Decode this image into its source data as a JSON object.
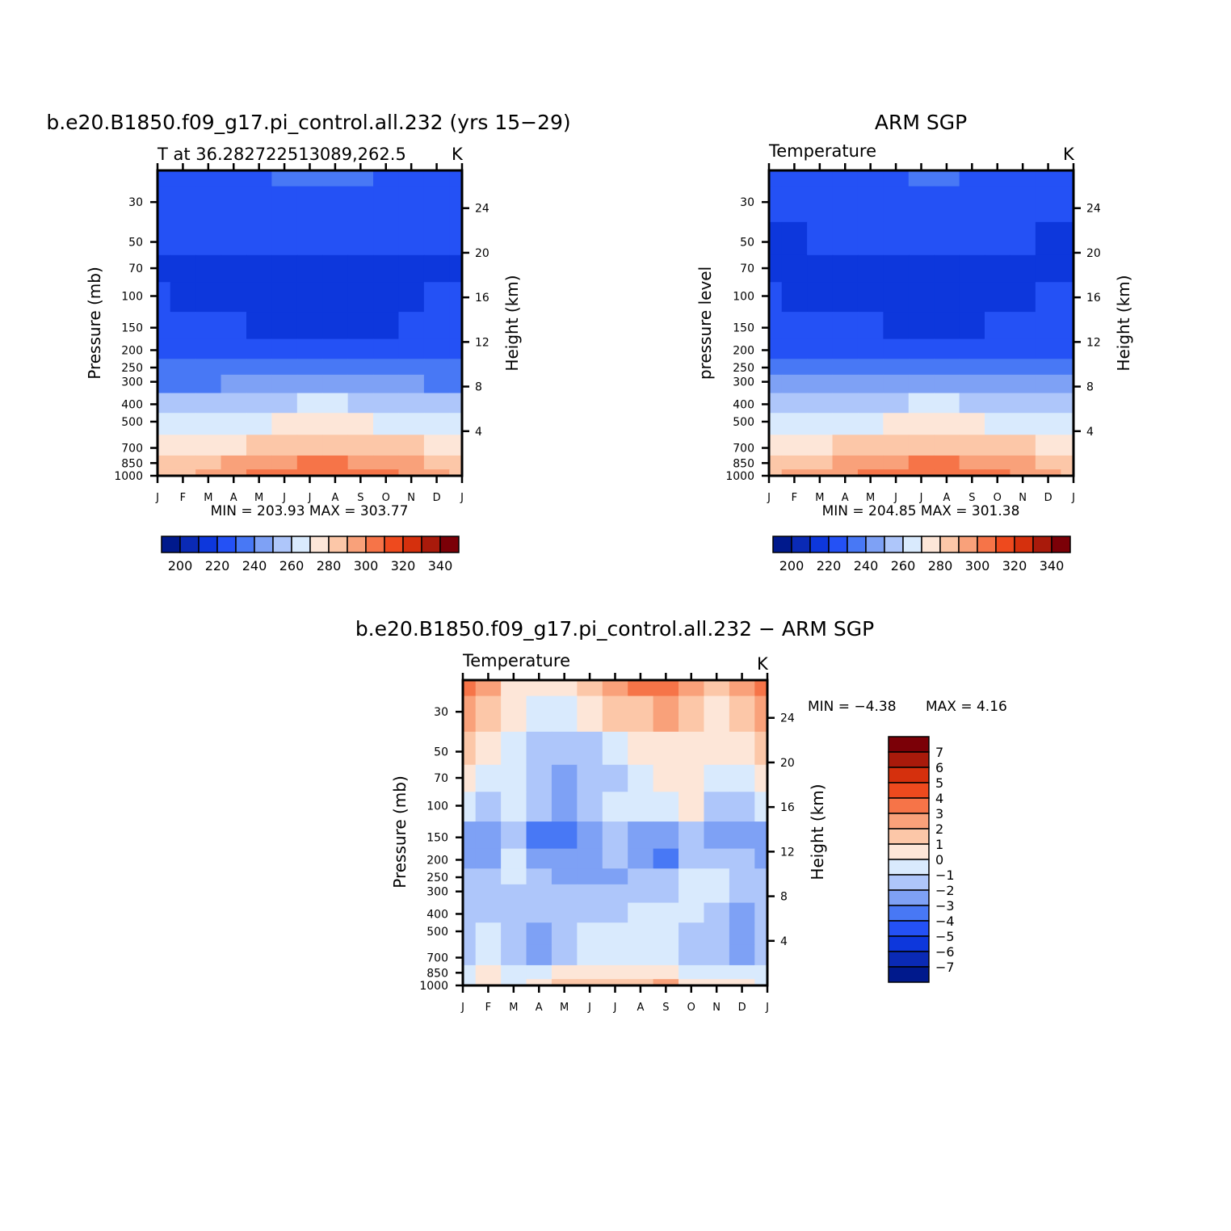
{
  "chart_data": [
    {
      "type": "heatmap",
      "title": "b.e20.B1850.f09_g17.pi_control.all.232 (yrs 15−29)",
      "subtitle": "T at 36.282722513089,262.5",
      "units": "K",
      "ylabel": "Pressure (mb)",
      "ylabel_right": "Height (km)",
      "x_ticks": [
        "J",
        "F",
        "M",
        "A",
        "M",
        "J",
        "J",
        "A",
        "S",
        "O",
        "N",
        "D",
        "J"
      ],
      "y_ticks": [
        "30",
        "50",
        "70",
        "100",
        "150",
        "200",
        "250",
        "300",
        "400",
        "500",
        "700",
        "850",
        "1000"
      ],
      "y_ticks_right": [
        "24",
        "20",
        "16",
        "12",
        "8",
        "4"
      ],
      "ylim": [
        1000,
        20
      ],
      "y_scale": "log",
      "stats": "MIN = 203.93 MAX = 303.77",
      "levels": [
        "200",
        "220",
        "240",
        "260",
        "280",
        "300",
        "320",
        "340"
      ],
      "x": [
        1,
        2,
        3,
        4,
        5,
        6,
        7,
        8,
        9,
        10,
        11,
        12,
        13
      ],
      "y": [
        20,
        30,
        50,
        70,
        100,
        150,
        200,
        250,
        300,
        400,
        500,
        700,
        850,
        1000
      ],
      "z": [
        [
          217,
          217,
          217,
          218,
          219,
          220,
          221,
          221,
          220,
          219,
          217,
          217,
          217
        ],
        [
          214,
          214,
          214,
          215,
          216,
          217,
          218,
          218,
          217,
          216,
          214,
          214,
          214
        ],
        [
          211,
          211,
          211,
          211,
          212,
          212,
          213,
          213,
          212,
          211,
          211,
          211,
          211
        ],
        [
          208,
          208,
          207,
          207,
          207,
          207,
          207,
          207,
          207,
          208,
          208,
          208,
          208
        ],
        [
          210,
          209,
          207,
          207,
          206,
          205,
          205,
          205,
          205,
          206,
          208,
          210,
          210
        ],
        [
          213,
          213,
          212,
          210,
          206,
          205,
          205,
          205,
          206,
          207,
          210,
          213,
          213
        ],
        [
          217,
          217,
          217,
          217,
          216,
          216,
          216,
          216,
          216,
          216,
          217,
          217,
          217
        ],
        [
          224,
          224,
          224,
          225,
          226,
          227,
          228,
          228,
          227,
          226,
          225,
          224,
          224
        ],
        [
          229,
          229,
          229,
          230,
          232,
          234,
          235,
          235,
          234,
          233,
          231,
          229,
          229
        ],
        [
          240,
          240,
          240,
          242,
          245,
          248,
          250,
          250,
          249,
          247,
          244,
          241,
          240
        ],
        [
          252,
          252,
          252,
          254,
          257,
          260,
          262,
          262,
          261,
          259,
          256,
          253,
          252
        ],
        [
          266,
          266,
          267,
          269,
          272,
          275,
          277,
          277,
          276,
          273,
          270,
          267,
          266
        ],
        [
          274,
          274,
          276,
          280,
          284,
          288,
          290,
          290,
          288,
          284,
          280,
          276,
          274
        ],
        [
          278,
          279,
          282,
          287,
          292,
          296,
          299,
          299,
          296,
          292,
          286,
          281,
          278
        ]
      ]
    },
    {
      "type": "heatmap",
      "title": "ARM SGP",
      "subtitle": "Temperature",
      "units": "K",
      "ylabel": "pressure level",
      "ylabel_right": "Height (km)",
      "x_ticks": [
        "J",
        "F",
        "M",
        "A",
        "M",
        "J",
        "J",
        "A",
        "S",
        "O",
        "N",
        "D",
        "J"
      ],
      "y_ticks": [
        "30",
        "50",
        "70",
        "100",
        "150",
        "200",
        "250",
        "300",
        "400",
        "500",
        "700",
        "850",
        "1000"
      ],
      "y_ticks_right": [
        "24",
        "20",
        "16",
        "12",
        "8",
        "4"
      ],
      "ylim": [
        1000,
        20
      ],
      "y_scale": "log",
      "stats": "MIN = 204.85 MAX = 301.38",
      "levels": [
        "200",
        "220",
        "240",
        "260",
        "280",
        "300",
        "320",
        "340"
      ],
      "x": [
        1,
        2,
        3,
        4,
        5,
        6,
        7,
        8,
        9,
        10,
        11,
        12,
        13
      ],
      "y": [
        20,
        30,
        50,
        70,
        100,
        150,
        200,
        250,
        300,
        400,
        500,
        700,
        850,
        1000
      ],
      "z": [
        [
          216,
          216,
          216,
          217,
          218,
          219,
          221,
          220,
          219,
          218,
          217,
          216,
          216
        ],
        [
          213,
          213,
          213,
          214,
          215,
          216,
          217,
          217,
          216,
          215,
          214,
          213,
          213
        ],
        [
          208,
          208,
          210,
          211,
          211,
          211,
          211,
          211,
          211,
          211,
          210,
          208,
          208
        ],
        [
          208,
          208,
          207,
          207,
          207,
          207,
          207,
          207,
          207,
          207,
          207,
          208,
          208
        ],
        [
          210,
          209,
          208,
          207,
          207,
          206,
          206,
          206,
          207,
          207,
          209,
          210,
          210
        ],
        [
          214,
          214,
          213,
          212,
          210,
          208,
          207,
          207,
          208,
          210,
          212,
          214,
          214
        ],
        [
          218,
          218,
          218,
          218,
          217,
          216,
          216,
          216,
          216,
          217,
          218,
          218,
          218
        ],
        [
          225,
          225,
          225,
          226,
          227,
          228,
          229,
          229,
          228,
          227,
          226,
          225,
          225
        ],
        [
          230,
          230,
          230,
          231,
          233,
          234,
          236,
          236,
          235,
          233,
          231,
          230,
          230
        ],
        [
          241,
          241,
          241,
          243,
          246,
          248,
          250,
          250,
          249,
          247,
          244,
          241,
          241
        ],
        [
          253,
          253,
          253,
          255,
          258,
          260,
          262,
          262,
          261,
          259,
          256,
          253,
          253
        ],
        [
          267,
          267,
          268,
          270,
          273,
          275,
          277,
          277,
          276,
          274,
          271,
          268,
          267
        ],
        [
          275,
          275,
          277,
          281,
          285,
          288,
          290,
          290,
          288,
          285,
          280,
          277,
          275
        ],
        [
          279,
          280,
          283,
          288,
          292,
          295,
          297,
          297,
          295,
          291,
          286,
          282,
          279
        ]
      ]
    },
    {
      "type": "heatmap",
      "title": "b.e20.B1850.f09_g17.pi_control.all.232 − ARM SGP",
      "subtitle": "Temperature",
      "units": "K",
      "ylabel": "Pressure (mb)",
      "ylabel_right": "Height (km)",
      "x_ticks": [
        "J",
        "F",
        "M",
        "A",
        "M",
        "J",
        "J",
        "A",
        "S",
        "O",
        "N",
        "D",
        "J"
      ],
      "y_ticks": [
        "30",
        "50",
        "70",
        "100",
        "150",
        "200",
        "250",
        "300",
        "400",
        "500",
        "700",
        "850",
        "1000"
      ],
      "y_ticks_right": [
        "24",
        "20",
        "16",
        "12",
        "8",
        "4"
      ],
      "ylim": [
        1000,
        20
      ],
      "y_scale": "log",
      "stats_min": "MIN = −4.38",
      "stats_max": "MAX = 4.16",
      "levels": [
        "7",
        "6",
        "5",
        "4",
        "3",
        "2",
        "1",
        "0",
        "−1",
        "−2",
        "−3",
        "−4",
        "−5",
        "−6",
        "−7"
      ],
      "x": [
        1,
        2,
        3,
        4,
        5,
        6,
        7,
        8,
        9,
        10,
        11,
        12,
        13
      ],
      "y": [
        20,
        30,
        50,
        70,
        100,
        150,
        200,
        250,
        300,
        400,
        500,
        700,
        850,
        1000
      ],
      "z": [
        [
          3.2,
          2.6,
          0.6,
          0.4,
          0.8,
          1.5,
          2.2,
          3.0,
          3.6,
          2.6,
          1.4,
          2.0,
          3.2
        ],
        [
          2.0,
          1.5,
          0.2,
          -0.6,
          -0.4,
          0.5,
          1.2,
          1.8,
          2.3,
          1.6,
          0.7,
          1.4,
          2.0
        ],
        [
          1.0,
          0.5,
          -0.6,
          -1.6,
          -1.9,
          -1.2,
          -0.8,
          0.2,
          0.8,
          0.6,
          0.1,
          0.5,
          1.0
        ],
        [
          0.3,
          -0.3,
          -1.0,
          -1.5,
          -2.4,
          -1.8,
          -1.4,
          -0.6,
          0.2,
          0.4,
          -0.8,
          -0.3,
          0.3
        ],
        [
          -0.8,
          -1.1,
          -0.5,
          -1.7,
          -2.2,
          -1.8,
          -0.9,
          -0.6,
          -0.8,
          0.1,
          -2.0,
          -1.3,
          -0.8
        ],
        [
          -3.0,
          -2.5,
          -1.4,
          -3.2,
          -3.8,
          -2.6,
          -2.0,
          -2.2,
          -3.0,
          -1.5,
          -2.2,
          -2.3,
          -3.0
        ],
        [
          -2.4,
          -2.1,
          -0.8,
          -2.7,
          -3.0,
          -2.5,
          -2.0,
          -2.2,
          -3.3,
          -1.8,
          -1.5,
          -1.9,
          -2.4
        ],
        [
          -1.6,
          -1.6,
          -0.8,
          -2.0,
          -2.3,
          -2.2,
          -2.1,
          -1.8,
          -1.9,
          -0.6,
          -0.8,
          -1.2,
          -1.6
        ],
        [
          -1.4,
          -1.5,
          -1.3,
          -1.6,
          -1.7,
          -1.6,
          -1.4,
          -1.2,
          -1.3,
          -0.9,
          -1.0,
          -1.3,
          -1.4
        ],
        [
          -1.6,
          -1.5,
          -1.7,
          -1.6,
          -1.5,
          -1.3,
          -1.2,
          -1.0,
          -0.6,
          -1.0,
          -1.7,
          -2.2,
          -1.6
        ],
        [
          -1.8,
          -0.9,
          -1.8,
          -2.2,
          -1.4,
          -1.0,
          -0.8,
          -0.6,
          -0.5,
          -1.5,
          -1.8,
          -2.6,
          -1.8
        ],
        [
          -1.3,
          -0.6,
          -2.0,
          -2.6,
          -1.5,
          -0.9,
          -0.7,
          -0.6,
          -0.5,
          -1.3,
          -1.6,
          -2.2,
          -1.3
        ],
        [
          -0.6,
          0.1,
          -0.4,
          -0.2,
          0.2,
          0.5,
          0.6,
          0.6,
          0.4,
          -0.3,
          -0.5,
          -0.7,
          -0.6
        ],
        [
          -0.4,
          0.2,
          -0.1,
          0.3,
          1.5,
          1.8,
          1.8,
          1.6,
          2.4,
          0.8,
          0.6,
          0.3,
          -0.4
        ]
      ]
    }
  ],
  "palettes": {
    "temperature": [
      "#00198c",
      "#0a2ab5",
      "#0d37dc",
      "#2451f5",
      "#4878f5",
      "#7ea1f5",
      "#aec6fa",
      "#d9eafd",
      "#fde6d8",
      "#fcc7a8",
      "#f9a17a",
      "#f67448",
      "#ee4a1e",
      "#d5300d",
      "#a91a0b",
      "#7b0007"
    ],
    "difference": [
      "#00198c",
      "#0a2ab5",
      "#0d37dc",
      "#2451f5",
      "#4878f5",
      "#7ea1f5",
      "#aec6fa",
      "#d9eafd",
      "#fde6d8",
      "#fcc7a8",
      "#f9a17a",
      "#f67448",
      "#ee4a1e",
      "#d5300d",
      "#a91a0b",
      "#7b0007"
    ]
  }
}
